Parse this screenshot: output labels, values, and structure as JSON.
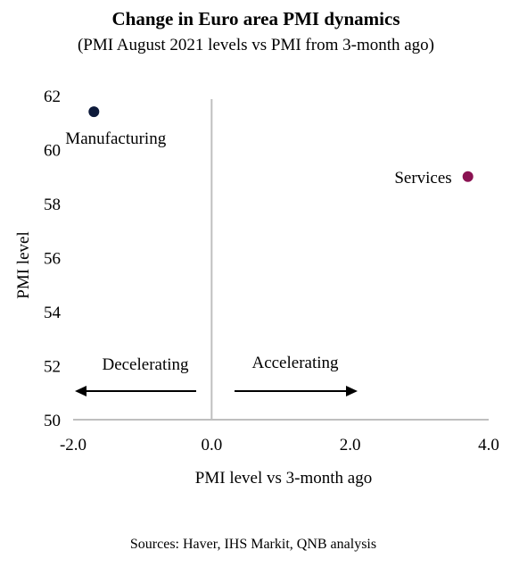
{
  "chart_data": {
    "type": "scatter",
    "title": "Change in Euro area PMI dynamics",
    "subtitle": "(PMI August 2021 levels vs PMI from 3-month ago)",
    "xlabel": "PMI level vs 3-month ago",
    "ylabel": "PMI level",
    "xlim": [
      -2.0,
      4.0
    ],
    "ylim": [
      50,
      62
    ],
    "x_ticks": [
      "-2.0",
      "0.0",
      "2.0",
      "4.0"
    ],
    "y_ticks": [
      "50",
      "52",
      "54",
      "56",
      "58",
      "60",
      "62"
    ],
    "grid": false,
    "points": [
      {
        "label": "Manufacturing",
        "x": -1.7,
        "y": 61.4,
        "color": "#0d1a3a"
      },
      {
        "label": "Services",
        "x": 3.7,
        "y": 59.0,
        "color": "#8a1252"
      }
    ],
    "annotations": [
      {
        "text": "Decelerating",
        "direction": "left"
      },
      {
        "text": "Accelerating",
        "direction": "right"
      }
    ],
    "source": "Sources: Haver, IHS Markit, QNB analysis",
    "axis_color": "#bfbfbf"
  }
}
